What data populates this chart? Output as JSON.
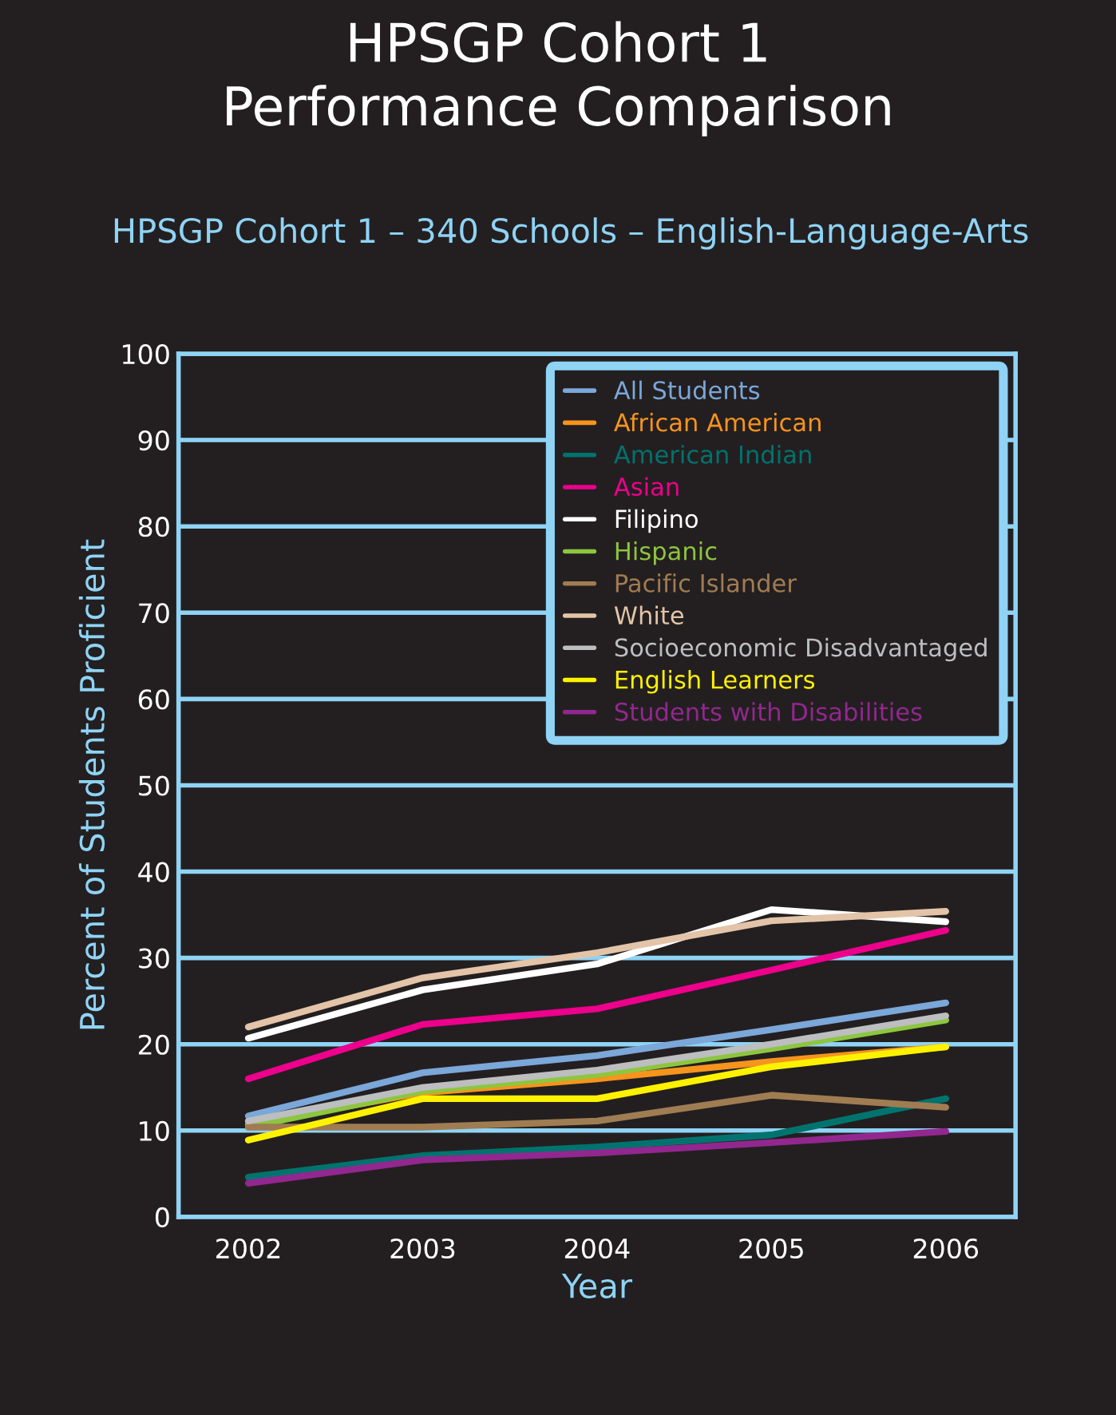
{
  "chart_data": {
    "type": "line",
    "title": "HPSGP Cohort 1\nPerformance Comparison",
    "subtitle": "HPSGP Cohort 1 – 340 Schools – English-Language-Arts",
    "xlabel": "Year",
    "ylabel": "Percent of Students Proficient",
    "categories": [
      "2002",
      "2003",
      "2004",
      "2005",
      "2006"
    ],
    "ylim": [
      0,
      100
    ],
    "yticks": [
      0,
      10,
      20,
      30,
      40,
      50,
      60,
      70,
      80,
      90,
      100
    ],
    "grid": "y",
    "legend": "top right",
    "marker": "none",
    "line_style": "solid",
    "series": [
      {
        "name": "All Students",
        "color": "#7ba7d9",
        "values": [
          11.7,
          16.7,
          18.7,
          21.7,
          24.8
        ]
      },
      {
        "name": "African American",
        "color": "#f7941d",
        "values": [
          10.7,
          14.4,
          16.0,
          18.0,
          19.7
        ]
      },
      {
        "name": "American Indian",
        "color": "#00736e",
        "values": [
          4.6,
          7.1,
          8.1,
          9.5,
          13.7
        ]
      },
      {
        "name": "Asian",
        "color": "#ec008c",
        "values": [
          16.0,
          22.3,
          24.1,
          28.6,
          33.2
        ]
      },
      {
        "name": "Filipino",
        "color": "#ffffff",
        "values": [
          20.7,
          26.3,
          29.3,
          35.6,
          34.2
        ]
      },
      {
        "name": "Hispanic",
        "color": "#8dc63f",
        "values": [
          10.4,
          14.6,
          16.5,
          19.5,
          22.8
        ]
      },
      {
        "name": "Pacific Islander",
        "color": "#a07c52",
        "values": [
          10.4,
          10.4,
          11.1,
          14.1,
          12.7
        ]
      },
      {
        "name": "White",
        "color": "#e3c4a8",
        "values": [
          22.0,
          27.7,
          30.6,
          34.3,
          35.4
        ]
      },
      {
        "name": "Socioeconomic Disadvantaged",
        "color": "#bcbec0",
        "values": [
          11.1,
          15.0,
          17.0,
          20.0,
          23.3
        ]
      },
      {
        "name": "English Learners",
        "color": "#fff200",
        "values": [
          8.9,
          13.7,
          13.7,
          17.4,
          19.7
        ]
      },
      {
        "name": "Students with Disabilities",
        "color": "#92278f",
        "values": [
          3.9,
          6.6,
          7.4,
          8.6,
          9.9
        ]
      }
    ]
  }
}
